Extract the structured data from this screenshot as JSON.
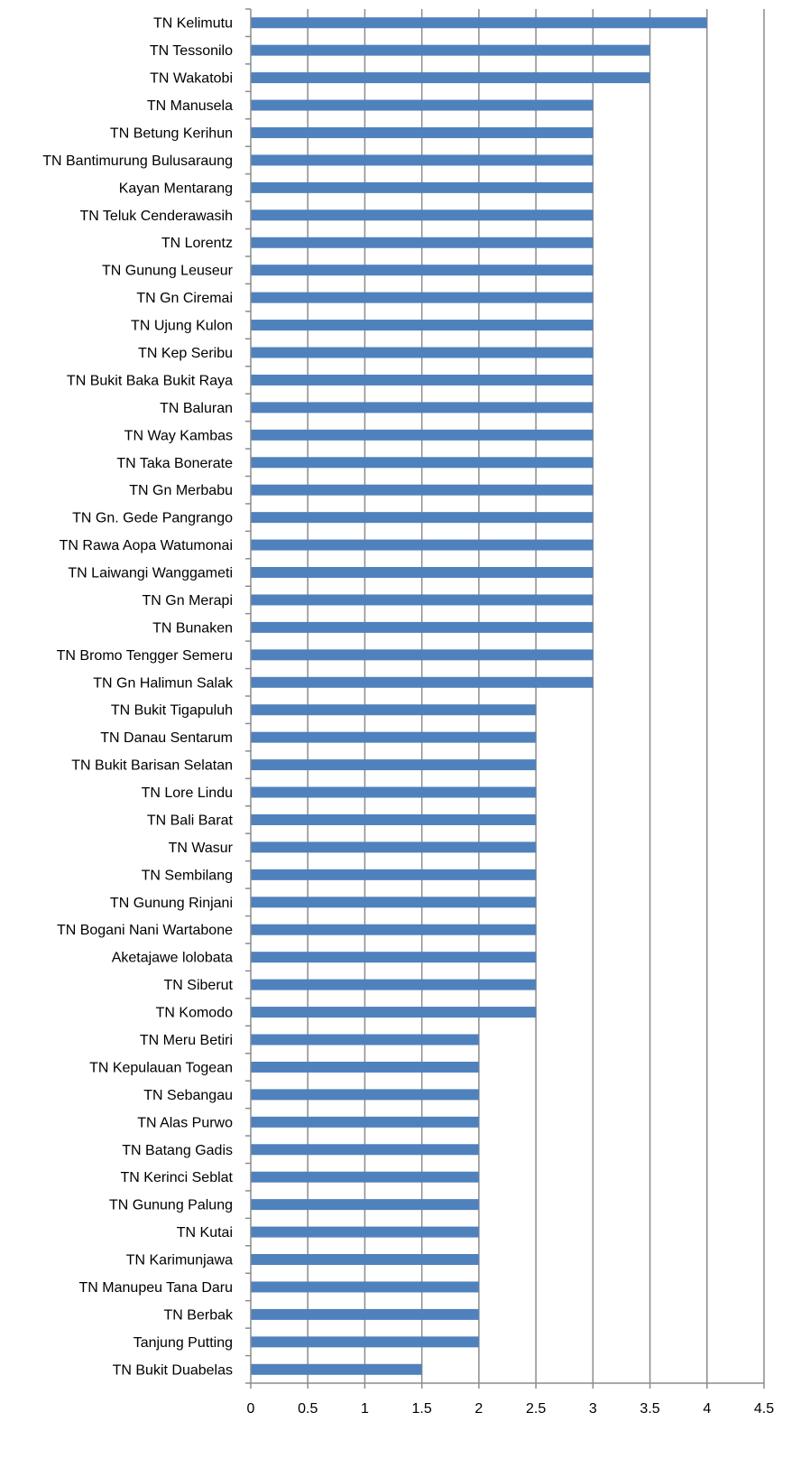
{
  "chart_data": {
    "type": "bar",
    "orientation": "horizontal",
    "categories": [
      "TN Kelimutu",
      "TN Tessonilo",
      "TN Wakatobi",
      "TN Manusela",
      "TN Betung Kerihun",
      "TN Bantimurung Bulusaraung",
      "Kayan Mentarang",
      "TN Teluk Cenderawasih",
      "TN Lorentz",
      "TN Gunung Leuseur",
      "TN Gn Ciremai",
      "TN Ujung Kulon",
      "TN Kep Seribu",
      "TN Bukit Baka Bukit Raya",
      "TN Baluran",
      "TN Way Kambas",
      "TN Taka Bonerate",
      "TN Gn Merbabu",
      "TN Gn. Gede Pangrango",
      "TN Rawa Aopa Watumonai",
      "TN Laiwangi Wanggameti",
      "TN Gn Merapi",
      "TN Bunaken",
      "TN Bromo Tengger Semeru",
      "TN Gn Halimun Salak",
      "TN Bukit Tigapuluh",
      "TN Danau Sentarum",
      "TN Bukit Barisan Selatan",
      "TN Lore Lindu",
      "TN Bali Barat",
      "TN Wasur",
      "TN Sembilang",
      "TN Gunung Rinjani",
      "TN Bogani Nani Wartabone",
      "Aketajawe lolobata",
      "TN Siberut",
      "TN Komodo",
      "TN Meru Betiri",
      "TN Kepulauan Togean",
      "TN Sebangau",
      "TN Alas Purwo",
      "TN Batang Gadis",
      "TN Kerinci Seblat",
      "TN Gunung Palung",
      "TN Kutai",
      "TN Karimunjawa",
      "TN Manupeu Tana Daru",
      "TN Berbak",
      "Tanjung Putting",
      "TN Bukit Duabelas"
    ],
    "values": [
      4,
      3.5,
      3.5,
      3,
      3,
      3,
      3,
      3,
      3,
      3,
      3,
      3,
      3,
      3,
      3,
      3,
      3,
      3,
      3,
      3,
      3,
      3,
      3,
      3,
      3,
      2.5,
      2.5,
      2.5,
      2.5,
      2.5,
      2.5,
      2.5,
      2.5,
      2.5,
      2.5,
      2.5,
      2.5,
      2,
      2,
      2,
      2,
      2,
      2,
      2,
      2,
      2,
      2,
      2,
      2,
      1.5
    ],
    "xlim": [
      0,
      4.5
    ],
    "x_ticks": [
      "0",
      "0.5",
      "1",
      "1.5",
      "2",
      "2.5",
      "3",
      "3.5",
      "4",
      "4.5"
    ],
    "grid": "vertical",
    "legend": "none",
    "title": "",
    "xlabel": "",
    "ylabel": "",
    "colors": {
      "bar": "#4f81bd",
      "grid": "#8c8c8c",
      "axis": "#8c8c8c",
      "text": "#000000"
    }
  }
}
